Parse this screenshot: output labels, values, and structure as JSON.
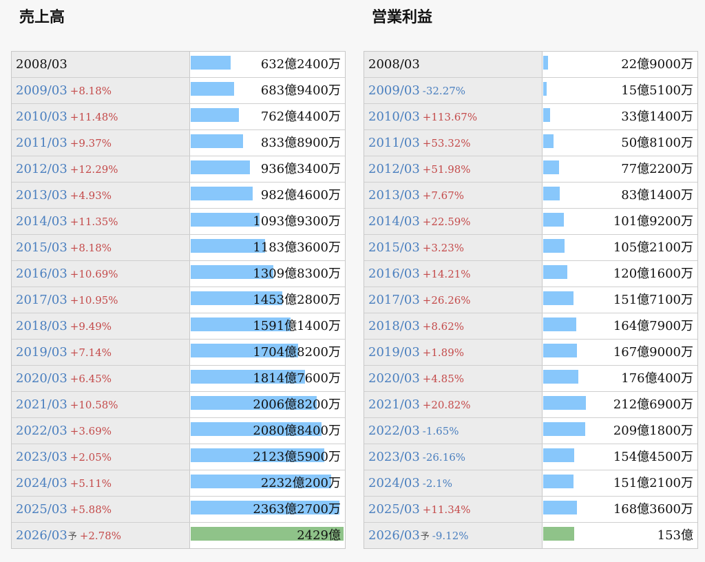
{
  "colors": {
    "bar": "#88c7fb",
    "bar_forecast": "#8fc389",
    "positive": "#c44a4a",
    "negative": "#4a7fbf",
    "year_link": "#4a7fbf"
  },
  "panels": [
    {
      "id": "sales",
      "title": "売上高",
      "rows": [
        {
          "year": "2008/03",
          "change": "",
          "value": "632億2400万",
          "amount": 632.24
        },
        {
          "year": "2009/03",
          "change": "+8.18%",
          "value": "683億9400万",
          "amount": 683.94
        },
        {
          "year": "2010/03",
          "change": "+11.48%",
          "value": "762億4400万",
          "amount": 762.44
        },
        {
          "year": "2011/03",
          "change": "+9.37%",
          "value": "833億8900万",
          "amount": 833.89
        },
        {
          "year": "2012/03",
          "change": "+12.29%",
          "value": "936億3400万",
          "amount": 936.34
        },
        {
          "year": "2013/03",
          "change": "+4.93%",
          "value": "982億4600万",
          "amount": 982.46
        },
        {
          "year": "2014/03",
          "change": "+11.35%",
          "value": "1093億9300万",
          "amount": 1093.93
        },
        {
          "year": "2015/03",
          "change": "+8.18%",
          "value": "1183億3600万",
          "amount": 1183.36
        },
        {
          "year": "2016/03",
          "change": "+10.69%",
          "value": "1309億8300万",
          "amount": 1309.83
        },
        {
          "year": "2017/03",
          "change": "+10.95%",
          "value": "1453億2800万",
          "amount": 1453.28
        },
        {
          "year": "2018/03",
          "change": "+9.49%",
          "value": "1591億1400万",
          "amount": 1591.14
        },
        {
          "year": "2019/03",
          "change": "+7.14%",
          "value": "1704億8200万",
          "amount": 1704.82
        },
        {
          "year": "2020/03",
          "change": "+6.45%",
          "value": "1814億7600万",
          "amount": 1814.76
        },
        {
          "year": "2021/03",
          "change": "+10.58%",
          "value": "2006億8200万",
          "amount": 2006.82
        },
        {
          "year": "2022/03",
          "change": "+3.69%",
          "value": "2080億8400万",
          "amount": 2080.84
        },
        {
          "year": "2023/03",
          "change": "+2.05%",
          "value": "2123億5900万",
          "amount": 2123.59
        },
        {
          "year": "2024/03",
          "change": "+5.11%",
          "value": "2232億200万",
          "amount": 2232.02
        },
        {
          "year": "2025/03",
          "change": "+5.88%",
          "value": "2363億2700万",
          "amount": 2363.27
        },
        {
          "year": "2026/03",
          "forecast_mark": "予",
          "change": "+2.78%",
          "value": "2429億",
          "amount": 2429,
          "forecast": true
        }
      ]
    },
    {
      "id": "profit",
      "title": "営業利益",
      "rows": [
        {
          "year": "2008/03",
          "change": "",
          "value": "22億9000万",
          "amount": 22.9
        },
        {
          "year": "2009/03",
          "change": "-32.27%",
          "value": "15億5100万",
          "amount": 15.51
        },
        {
          "year": "2010/03",
          "change": "+113.67%",
          "value": "33億1400万",
          "amount": 33.14
        },
        {
          "year": "2011/03",
          "change": "+53.32%",
          "value": "50億8100万",
          "amount": 50.81
        },
        {
          "year": "2012/03",
          "change": "+51.98%",
          "value": "77億2200万",
          "amount": 77.22
        },
        {
          "year": "2013/03",
          "change": "+7.67%",
          "value": "83億1400万",
          "amount": 83.14
        },
        {
          "year": "2014/03",
          "change": "+22.59%",
          "value": "101億9200万",
          "amount": 101.92
        },
        {
          "year": "2015/03",
          "change": "+3.23%",
          "value": "105億2100万",
          "amount": 105.21
        },
        {
          "year": "2016/03",
          "change": "+14.21%",
          "value": "120億1600万",
          "amount": 120.16
        },
        {
          "year": "2017/03",
          "change": "+26.26%",
          "value": "151億7100万",
          "amount": 151.71
        },
        {
          "year": "2018/03",
          "change": "+8.62%",
          "value": "164億7900万",
          "amount": 164.79
        },
        {
          "year": "2019/03",
          "change": "+1.89%",
          "value": "167億9000万",
          "amount": 167.9
        },
        {
          "year": "2020/03",
          "change": "+4.85%",
          "value": "176億400万",
          "amount": 176.04
        },
        {
          "year": "2021/03",
          "change": "+20.82%",
          "value": "212億6900万",
          "amount": 212.69
        },
        {
          "year": "2022/03",
          "change": "-1.65%",
          "value": "209億1800万",
          "amount": 209.18
        },
        {
          "year": "2023/03",
          "change": "-26.16%",
          "value": "154億4500万",
          "amount": 154.45
        },
        {
          "year": "2024/03",
          "change": "-2.1%",
          "value": "151億2100万",
          "amount": 151.21
        },
        {
          "year": "2025/03",
          "change": "+11.34%",
          "value": "168億3600万",
          "amount": 168.36
        },
        {
          "year": "2026/03",
          "forecast_mark": "予",
          "change": "-9.12%",
          "value": "153億",
          "amount": 153,
          "forecast": true
        }
      ]
    }
  ]
}
